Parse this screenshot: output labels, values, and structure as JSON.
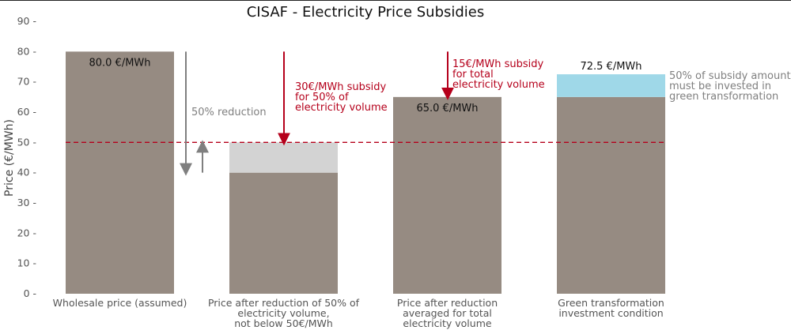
{
  "chart_data": {
    "type": "bar",
    "title": "CISAF - Electricity Price Subsidies",
    "ylabel": "Price (€/MWh)",
    "xlabel": "",
    "ylim": [
      0,
      90
    ],
    "yticks": [
      0,
      10,
      20,
      30,
      40,
      50,
      60,
      70,
      80,
      90
    ],
    "ytick_labels": [
      "0 -",
      "10 -",
      "20 -",
      "30 -",
      "40 -",
      "50 -",
      "60 -",
      "70 -",
      "80 -",
      "90 -"
    ],
    "categories": [
      [
        "Wholesale price (assumed)"
      ],
      [
        "Price after reduction of 50% of",
        "electricity volume,",
        "not below 50€/MWh"
      ],
      [
        "Price after reduction",
        "averaged for total",
        "electricity volume"
      ],
      [
        "Green transformation",
        "investment condition"
      ]
    ],
    "series": [
      {
        "name": "Price",
        "color": "#968b82",
        "values": [
          80,
          40,
          65,
          65
        ]
      },
      {
        "name": "Price floor portion",
        "color": "#d3d3d3",
        "values": [
          0,
          10,
          0,
          0
        ]
      },
      {
        "name": "Green investment",
        "color": "#9fd8e8",
        "values": [
          0,
          0,
          0,
          7.5
        ]
      }
    ],
    "reference_line": {
      "y": 50,
      "color": "#b5001b",
      "style": "dashed"
    },
    "data_labels": [
      {
        "bar": 0,
        "y": 80,
        "text": "80.0 €/MWh",
        "position": "inside-top"
      },
      {
        "bar": 2,
        "y": 65,
        "text": "65.0 €/MWh",
        "position": "inside-top"
      },
      {
        "bar": 3,
        "y": 72.5,
        "text": "72.5 €/MWh",
        "position": "above"
      }
    ],
    "annotations": [
      {
        "bar": 0,
        "lines": [
          "50% reduction"
        ],
        "color": "#7f7f7f",
        "arrow_from": 80,
        "arrow_to": 40
      },
      {
        "bar": 1,
        "lines": [
          "30€/MWh subsidy",
          "for 50% of",
          "electricity volume"
        ],
        "color": "#b5001b",
        "arrow_from": 80,
        "arrow_to": 50
      },
      {
        "bar": 2,
        "lines": [
          "15€/MWh subsidy",
          " for total",
          "electricity volume"
        ],
        "color": "#b5001b",
        "arrow_from": 80,
        "arrow_to": 65
      },
      {
        "bar": 3,
        "lines": [
          "50% of subsidy amount",
          "must be invested in",
          "green transformation"
        ],
        "color": "#7f7f7f"
      }
    ],
    "grid": false,
    "legend": "none"
  }
}
